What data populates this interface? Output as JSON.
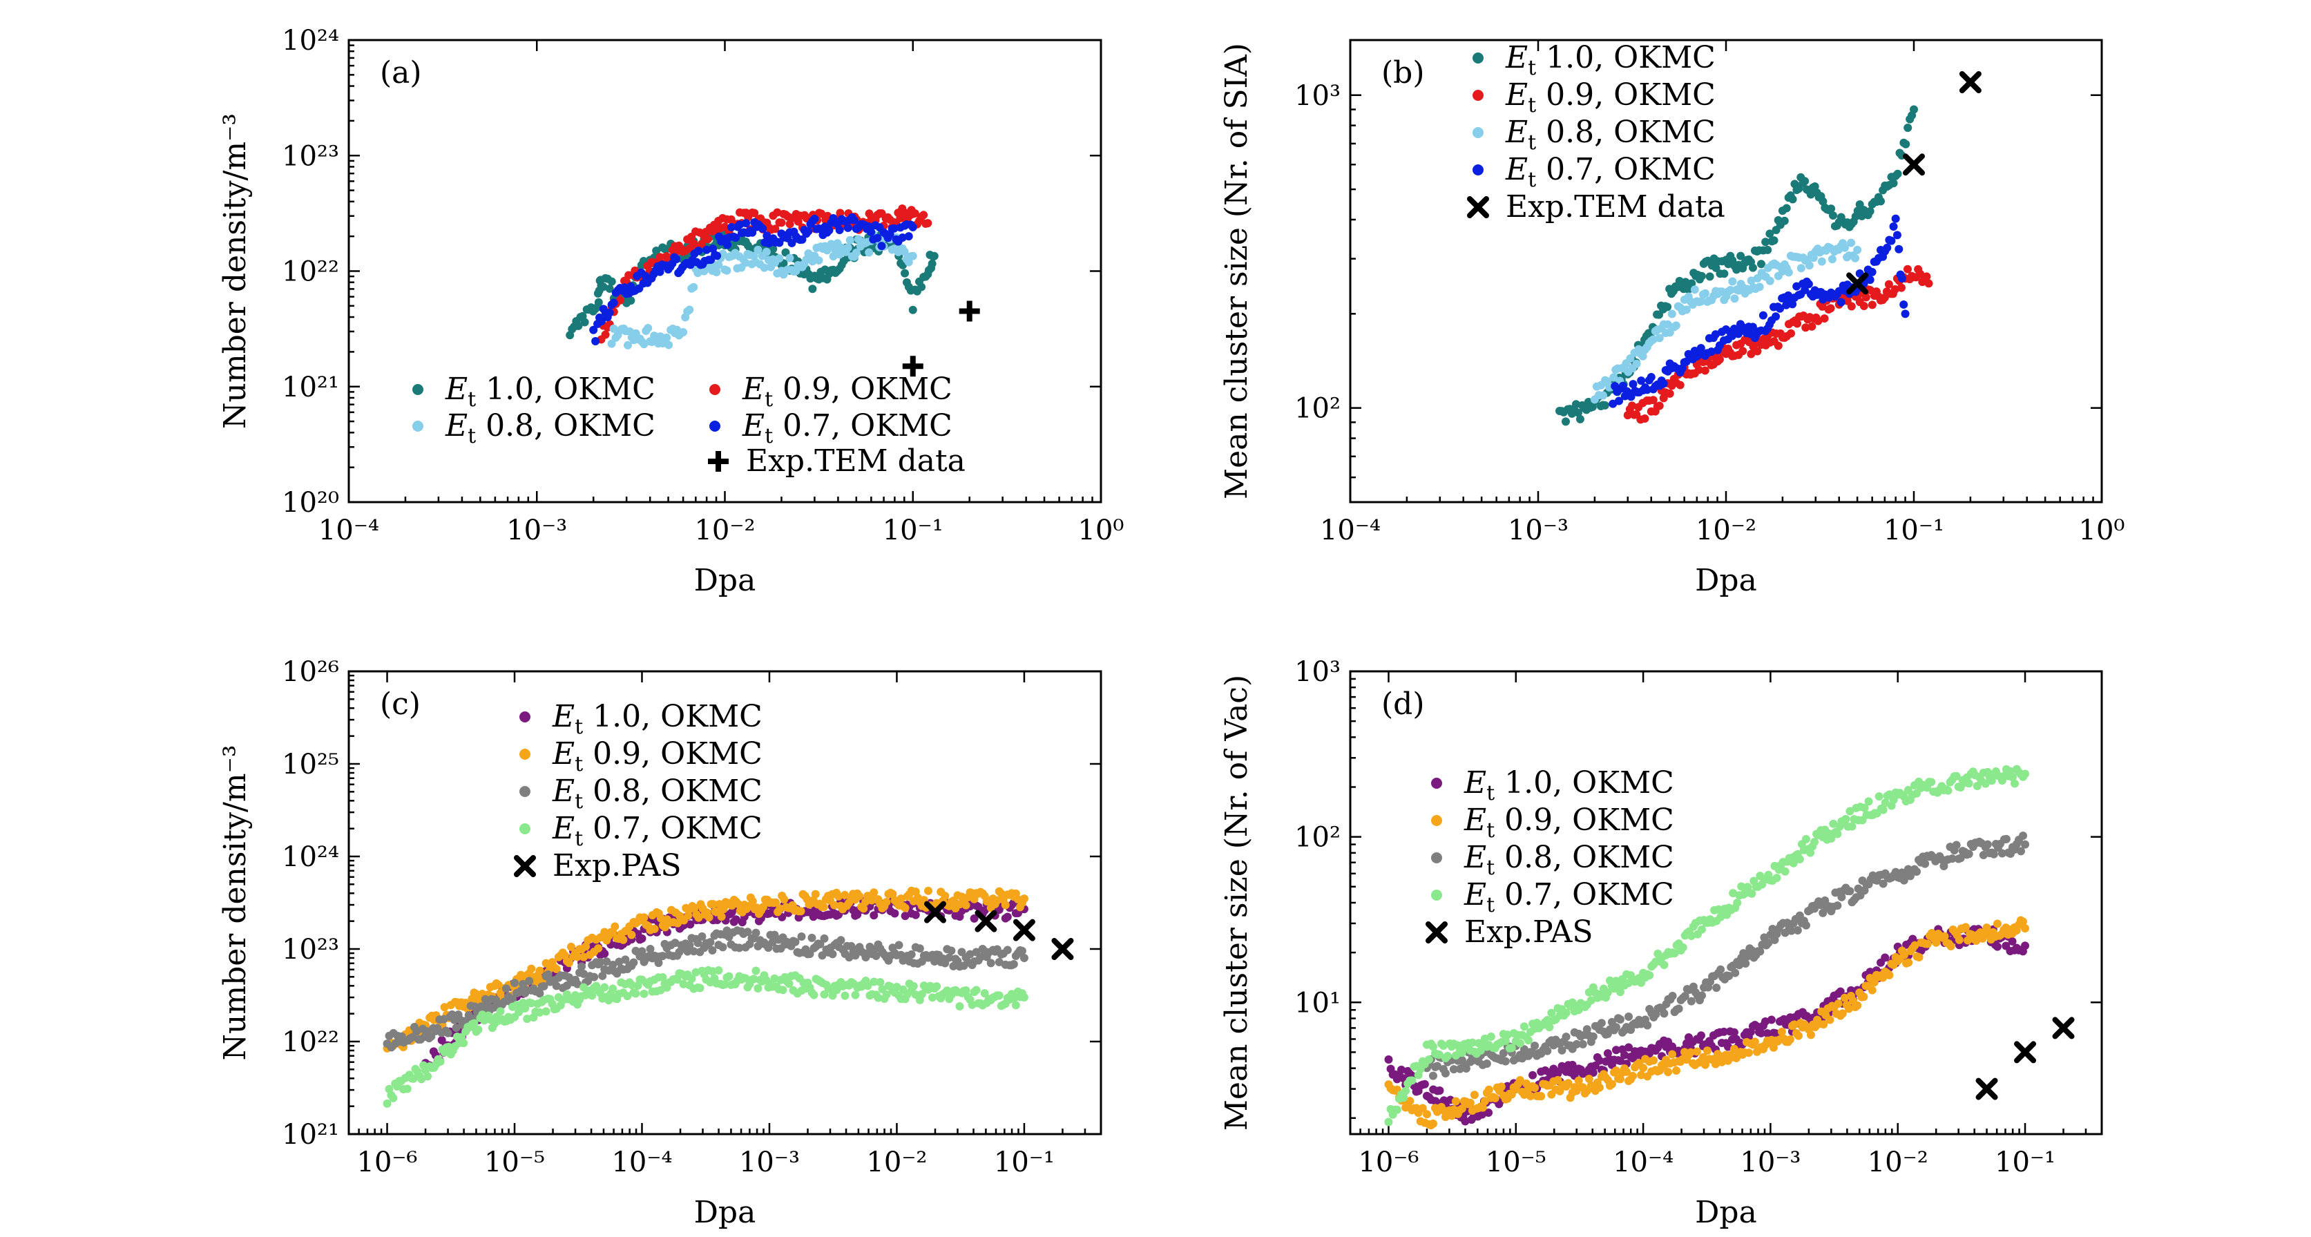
{
  "chart_data": [
    {
      "panel": "(a)",
      "type": "scatter",
      "xlabel": "Dpa",
      "ylabel": "Number density/m⁻³",
      "xscale": "log",
      "yscale": "log",
      "xlim": [
        0.0001,
        1
      ],
      "ylim": [
        1e+20,
        1e+24
      ],
      "x_ticks": [
        "10⁻⁴",
        "10⁻³",
        "10⁻²",
        "10⁻¹",
        "10⁰"
      ],
      "y_ticks": [
        "10²⁰",
        "10²¹",
        "10²²",
        "10²³",
        "10²⁴"
      ],
      "legend": "bottom-right, two columns",
      "series": [
        {
          "name": "E_t 1.0, OKMC",
          "label_main": "E",
          "label_sub": "t",
          "label_rest": " 1.0, OKMC",
          "color": "#1a7a78",
          "marker": "dot",
          "points": [
            [
              0.0015,
              2.7e+21
            ],
            [
              0.0021,
              5.4e+21
            ],
            [
              0.0022,
              8.1e+21
            ],
            [
              0.003,
              5.4e+21
            ],
            [
              0.004,
              1.35e+22
            ],
            [
              0.007,
              1.6e+22
            ],
            [
              0.01,
              1.9e+22
            ],
            [
              0.02,
              1.35e+22
            ],
            [
              0.03,
              8.1e+21
            ],
            [
              0.05,
              1.6e+22
            ],
            [
              0.08,
              1.9e+22
            ],
            [
              0.1,
              5.4e+21
            ],
            [
              0.12,
              1.08e+22
            ],
            [
              0.13,
              1.35e+22
            ]
          ]
        },
        {
          "name": "E_t 0.9, OKMC",
          "label_main": "E",
          "label_sub": "t",
          "label_rest": " 0.9, OKMC",
          "color": "#e41a1c",
          "marker": "dot",
          "points": [
            [
              0.0022,
              2.7e+21
            ],
            [
              0.003,
              8.1e+21
            ],
            [
              0.006,
              1.6e+22
            ],
            [
              0.009,
              2.4e+22
            ],
            [
              0.012,
              2.7e+22
            ],
            [
              0.02,
              2.7e+22
            ],
            [
              0.04,
              2.7e+22
            ],
            [
              0.07,
              2.7e+22
            ],
            [
              0.09,
              3e+22
            ],
            [
              0.1,
              3e+22
            ],
            [
              0.12,
              2.6e+22
            ]
          ]
        },
        {
          "name": "E_t 0.8, OKMC",
          "label_main": "E",
          "label_sub": "t",
          "label_rest": " 0.8, OKMC",
          "color": "#87ceeb",
          "marker": "dot",
          "points": [
            [
              0.0025,
              2.7e+21
            ],
            [
              0.004,
              2.7e+21
            ],
            [
              0.006,
              2.7e+21
            ],
            [
              0.007,
              1.08e+22
            ],
            [
              0.015,
              1.35e+22
            ],
            [
              0.02,
              1.08e+22
            ],
            [
              0.03,
              1.35e+22
            ],
            [
              0.05,
              1.6e+22
            ],
            [
              0.07,
              1.9e+22
            ],
            [
              0.1,
              1.35e+22
            ]
          ]
        },
        {
          "name": "E_t 0.7, OKMC",
          "label_main": "E",
          "label_sub": "t",
          "label_rest": " 0.7, OKMC",
          "color": "#0a1fe0",
          "marker": "dot",
          "points": [
            [
              0.002,
              2.7e+21
            ],
            [
              0.0025,
              5.4e+21
            ],
            [
              0.0035,
              8.1e+21
            ],
            [
              0.005,
              1.08e+22
            ],
            [
              0.008,
              1.35e+22
            ],
            [
              0.012,
              2.4e+22
            ],
            [
              0.02,
              1.9e+22
            ],
            [
              0.03,
              2.4e+22
            ],
            [
              0.05,
              2.7e+22
            ],
            [
              0.07,
              1.9e+22
            ],
            [
              0.1,
              2.4e+22
            ]
          ]
        },
        {
          "name": "Exp.TEM data",
          "color": "#000000",
          "marker": "plus",
          "points": [
            [
              0.1,
              1.5e+21
            ],
            [
              0.2,
              4.5e+21
            ]
          ]
        }
      ]
    },
    {
      "panel": "(b)",
      "type": "scatter",
      "xlabel": "Dpa",
      "ylabel": "Mean cluster size (Nr. of SIA)",
      "xscale": "log",
      "yscale": "log",
      "xlim": [
        0.0001,
        1
      ],
      "ylim": [
        50,
        1500
      ],
      "x_ticks": [
        "10⁻⁴",
        "10⁻³",
        "10⁻²",
        "10⁻¹",
        "10⁰"
      ],
      "y_ticks": [
        "10²",
        "10³"
      ],
      "legend": "top-left",
      "series": [
        {
          "name": "E_t 1.0, OKMC",
          "label_main": "E",
          "label_sub": "t",
          "label_rest": " 1.0, OKMC",
          "color": "#1a7a78",
          "marker": "dot",
          "points": [
            [
              0.0013,
              95
            ],
            [
              0.002,
              100
            ],
            [
              0.003,
              130
            ],
            [
              0.005,
              230
            ],
            [
              0.008,
              280
            ],
            [
              0.015,
              300
            ],
            [
              0.02,
              400
            ],
            [
              0.025,
              550
            ],
            [
              0.04,
              380
            ],
            [
              0.06,
              450
            ],
            [
              0.08,
              550
            ],
            [
              0.1,
              900
            ]
          ]
        },
        {
          "name": "E_t 0.9, OKMC",
          "label_main": "E",
          "label_sub": "t",
          "label_rest": " 0.9, OKMC",
          "color": "#e41a1c",
          "marker": "dot",
          "points": [
            [
              0.003,
              95
            ],
            [
              0.004,
              100
            ],
            [
              0.006,
              130
            ],
            [
              0.01,
              150
            ],
            [
              0.02,
              170
            ],
            [
              0.04,
              220
            ],
            [
              0.07,
              230
            ],
            [
              0.1,
              270
            ],
            [
              0.12,
              250
            ]
          ]
        },
        {
          "name": "E_t 0.8, OKMC",
          "label_main": "E",
          "label_sub": "t",
          "label_rest": " 0.8, OKMC",
          "color": "#87ceeb",
          "marker": "dot",
          "points": [
            [
              0.002,
              110
            ],
            [
              0.004,
              160
            ],
            [
              0.007,
              230
            ],
            [
              0.012,
              240
            ],
            [
              0.02,
              280
            ],
            [
              0.03,
              310
            ],
            [
              0.05,
              320
            ]
          ]
        },
        {
          "name": "E_t 0.7, OKMC",
          "label_main": "E",
          "label_sub": "t",
          "label_rest": " 0.7, OKMC",
          "color": "#0a1fe0",
          "marker": "dot",
          "points": [
            [
              0.0025,
              110
            ],
            [
              0.004,
              120
            ],
            [
              0.006,
              140
            ],
            [
              0.01,
              170
            ],
            [
              0.015,
              180
            ],
            [
              0.025,
              240
            ],
            [
              0.04,
              230
            ],
            [
              0.06,
              270
            ],
            [
              0.08,
              380
            ],
            [
              0.09,
              200
            ]
          ]
        },
        {
          "name": "Exp.TEM data",
          "color": "#000000",
          "marker": "x",
          "points": [
            [
              0.05,
              250
            ],
            [
              0.1,
              600
            ],
            [
              0.2,
              1100
            ]
          ]
        }
      ]
    },
    {
      "panel": "(c)",
      "type": "scatter",
      "xlabel": "Dpa",
      "ylabel": "Number density/m⁻³",
      "xscale": "log",
      "yscale": "log",
      "xlim": [
        5e-07,
        0.4
      ],
      "ylim": [
        1e+21,
        1e+26
      ],
      "x_ticks": [
        "10⁻⁶",
        "10⁻⁵",
        "10⁻⁴",
        "10⁻³",
        "10⁻²",
        "10⁻¹"
      ],
      "y_ticks": [
        "10²¹",
        "10²²",
        "10²³",
        "10²⁴",
        "10²⁵",
        "10²⁶"
      ],
      "legend": "upper-center",
      "series": [
        {
          "name": "E_t 1.0, OKMC",
          "label_main": "E",
          "label_sub": "t",
          "label_rest": " 1.0, OKMC",
          "color": "#7b1a7e",
          "marker": "dot",
          "points": [
            [
              2e-06,
              5e+21
            ],
            [
              3e-06,
              1e+22
            ],
            [
              5e-06,
              2e+22
            ],
            [
              1e-05,
              3.5e+22
            ],
            [
              3e-05,
              8e+22
            ],
            [
              0.0001,
              1.6e+23
            ],
            [
              0.0003,
              2.3e+23
            ],
            [
              0.001,
              2.5e+23
            ],
            [
              0.003,
              2.8e+23
            ],
            [
              0.01,
              2.7e+23
            ],
            [
              0.03,
              2.6e+23
            ],
            [
              0.1,
              2.7e+23
            ]
          ]
        },
        {
          "name": "E_t 0.9, OKMC",
          "label_main": "E",
          "label_sub": "t",
          "label_rest": " 0.9, OKMC",
          "color": "#f5a51a",
          "marker": "dot",
          "points": [
            [
              1e-06,
              8e+21
            ],
            [
              2e-06,
              1.5e+22
            ],
            [
              5e-06,
              3e+22
            ],
            [
              1e-05,
              4e+22
            ],
            [
              3e-05,
              9e+22
            ],
            [
              0.0001,
              1.9e+23
            ],
            [
              0.0003,
              2.6e+23
            ],
            [
              0.001,
              3e+23
            ],
            [
              0.003,
              3.3e+23
            ],
            [
              0.01,
              3.4e+23
            ],
            [
              0.03,
              3.4e+23
            ],
            [
              0.1,
              3.5e+23
            ]
          ]
        },
        {
          "name": "E_t 0.8, OKMC",
          "label_main": "E",
          "label_sub": "t",
          "label_rest": " 0.8, OKMC",
          "color": "#7f7f7f",
          "marker": "dot",
          "points": [
            [
              1e-06,
              1e+22
            ],
            [
              3e-06,
              1.5e+22
            ],
            [
              1e-05,
              3.5e+22
            ],
            [
              3e-05,
              5e+22
            ],
            [
              0.0001,
              8e+22
            ],
            [
              0.0005,
              1.3e+23
            ],
            [
              0.002,
              1.1e+23
            ],
            [
              0.01,
              9e+22
            ],
            [
              0.03,
              8e+22
            ],
            [
              0.1,
              8e+22
            ]
          ]
        },
        {
          "name": "E_t 0.7, OKMC",
          "label_main": "E",
          "label_sub": "t",
          "label_rest": " 0.7, OKMC",
          "color": "#8ce88c",
          "marker": "dot",
          "points": [
            [
              1e-06,
              2.5e+21
            ],
            [
              2e-06,
              5e+21
            ],
            [
              5e-06,
              1.5e+22
            ],
            [
              1e-05,
              2e+22
            ],
            [
              3e-05,
              3e+22
            ],
            [
              0.0001,
              4e+22
            ],
            [
              0.0005,
              5e+22
            ],
            [
              0.002,
              4e+22
            ],
            [
              0.01,
              3.5e+22
            ],
            [
              0.03,
              3e+22
            ],
            [
              0.1,
              3e+22
            ]
          ]
        },
        {
          "name": "Exp.PAS",
          "color": "#000000",
          "marker": "x",
          "points": [
            [
              0.02,
              2.5e+23
            ],
            [
              0.05,
              2e+23
            ],
            [
              0.1,
              1.6e+23
            ],
            [
              0.2,
              1e+23
            ]
          ]
        }
      ]
    },
    {
      "panel": "(d)",
      "type": "scatter",
      "xlabel": "Dpa",
      "ylabel": "Mean cluster size (Nr. of Vac)",
      "xscale": "log",
      "yscale": "log",
      "xlim": [
        5e-07,
        0.4
      ],
      "ylim": [
        1.6,
        1000
      ],
      "x_ticks": [
        "10⁻⁶",
        "10⁻⁵",
        "10⁻⁴",
        "10⁻³",
        "10⁻²",
        "10⁻¹"
      ],
      "y_ticks": [
        "10¹",
        "10²",
        "10³"
      ],
      "legend": "left",
      "series": [
        {
          "name": "E_t 1.0, OKMC",
          "label_main": "E",
          "label_sub": "t",
          "label_rest": " 1.0, OKMC",
          "color": "#7b1a7e",
          "marker": "dot",
          "points": [
            [
              1e-06,
              4
            ],
            [
              2e-06,
              3
            ],
            [
              4e-06,
              2
            ],
            [
              1e-05,
              3
            ],
            [
              3e-05,
              4
            ],
            [
              0.0001,
              5
            ],
            [
              0.0005,
              6
            ],
            [
              0.002,
              8
            ],
            [
              0.005,
              12
            ],
            [
              0.01,
              20
            ],
            [
              0.02,
              25
            ],
            [
              0.05,
              25
            ],
            [
              0.1,
              22
            ]
          ]
        },
        {
          "name": "E_t 0.9, OKMC",
          "label_main": "E",
          "label_sub": "t",
          "label_rest": " 0.9, OKMC",
          "color": "#f5a51a",
          "marker": "dot",
          "points": [
            [
              1e-06,
              3
            ],
            [
              2e-06,
              2
            ],
            [
              1e-05,
              3
            ],
            [
              3e-05,
              3
            ],
            [
              0.0001,
              4
            ],
            [
              0.0005,
              5
            ],
            [
              0.002,
              7
            ],
            [
              0.005,
              11
            ],
            [
              0.01,
              18
            ],
            [
              0.02,
              24
            ],
            [
              0.05,
              26
            ],
            [
              0.1,
              28
            ]
          ]
        },
        {
          "name": "E_t 0.8, OKMC",
          "label_main": "E",
          "label_sub": "t",
          "label_rest": " 0.8, OKMC",
          "color": "#7f7f7f",
          "marker": "dot",
          "points": [
            [
              2e-06,
              4
            ],
            [
              1e-05,
              5
            ],
            [
              3e-05,
              6
            ],
            [
              0.0001,
              8
            ],
            [
              0.0003,
              12
            ],
            [
              0.001,
              25
            ],
            [
              0.003,
              40
            ],
            [
              0.01,
              60
            ],
            [
              0.03,
              80
            ],
            [
              0.1,
              90
            ]
          ]
        },
        {
          "name": "E_t 0.7, OKMC",
          "label_main": "E",
          "label_sub": "t",
          "label_rest": " 0.7, OKMC",
          "color": "#8ce88c",
          "marker": "dot",
          "points": [
            [
              1e-06,
              2
            ],
            [
              2e-06,
              5
            ],
            [
              1e-05,
              6
            ],
            [
              3e-05,
              10
            ],
            [
              0.0001,
              15
            ],
            [
              0.0003,
              30
            ],
            [
              0.001,
              60
            ],
            [
              0.003,
              110
            ],
            [
              0.01,
              180
            ],
            [
              0.03,
              220
            ],
            [
              0.1,
              240
            ]
          ]
        },
        {
          "name": "Exp.PAS",
          "color": "#000000",
          "marker": "x",
          "points": [
            [
              0.05,
              3
            ],
            [
              0.1,
              5
            ],
            [
              0.2,
              7
            ]
          ]
        }
      ]
    }
  ]
}
